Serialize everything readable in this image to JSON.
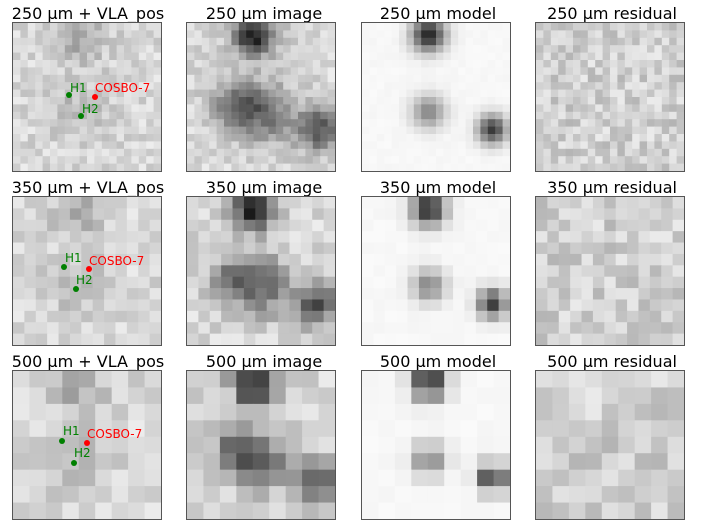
{
  "rows": [
    {
      "band": "250",
      "titles": [
        "250 μm  + VLA_pos",
        "250 μm  image",
        "250 μm  model",
        "250 μm residual"
      ],
      "markers": [
        {
          "label": "H1",
          "color": "#008000"
        },
        {
          "label": "H2",
          "color": "#008000"
        },
        {
          "label": "COSBO-7",
          "color": "#ff0000"
        }
      ]
    },
    {
      "band": "350",
      "titles": [
        "350 μm  + VLA_pos",
        "350 μm  image",
        "350 μm  model",
        "350 μm residual"
      ],
      "markers": [
        {
          "label": "H1",
          "color": "#008000"
        },
        {
          "label": "H2",
          "color": "#008000"
        },
        {
          "label": "COSBO-7",
          "color": "#ff0000"
        }
      ]
    },
    {
      "band": "500",
      "titles": [
        "500 μm  + VLA_pos",
        "500 μm  image",
        "500 μm  model",
        "500 μm residual"
      ],
      "markers": [
        {
          "label": "H1",
          "color": "#008000"
        },
        {
          "label": "H2",
          "color": "#008000"
        },
        {
          "label": "COSBO-7",
          "color": "#ff0000"
        }
      ]
    }
  ],
  "colors": {
    "green_marker": "#008000",
    "red_marker": "#ff0000",
    "colormap": "grayscale"
  }
}
